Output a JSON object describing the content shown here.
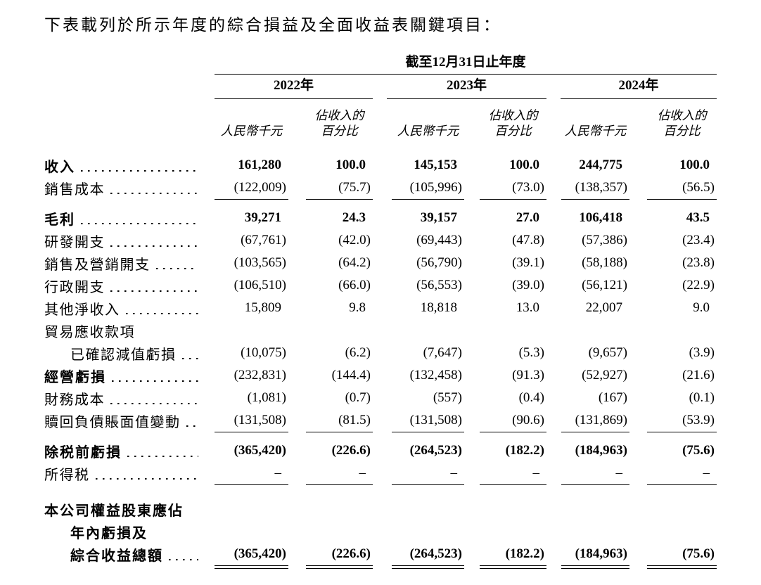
{
  "page": {
    "title": "下表載列於所示年度的綜合損益及全面收益表關鍵項目："
  },
  "table": {
    "period_header": "截至12月31日止年度",
    "years": [
      "2022年",
      "2023年",
      "2024年"
    ],
    "col_unit_header": "人民幣千元",
    "col_pct_header": [
      "佔收入的",
      "百分比"
    ],
    "rows": [
      {
        "label": "收入",
        "leader": true,
        "bold_label": true,
        "bold_values": true,
        "values": [
          "161,280",
          "100.0",
          "145,153",
          "100.0",
          "244,775",
          "100.0"
        ],
        "rule_below": "none"
      },
      {
        "label": "銷售成本",
        "leader": true,
        "values": [
          "(122,009)",
          "(75.7)",
          "(105,996)",
          "(73.0)",
          "(138,357)",
          "(56.5)"
        ],
        "rule_below": "single"
      },
      {
        "label": "毛利",
        "leader": true,
        "bold_label": true,
        "bold_values": true,
        "values": [
          "39,271",
          "24.3",
          "39,157",
          "27.0",
          "106,418",
          "43.5"
        ],
        "rule_below": "none"
      },
      {
        "label": "研發開支",
        "leader": true,
        "values": [
          "(67,761)",
          "(42.0)",
          "(69,443)",
          "(47.8)",
          "(57,386)",
          "(23.4)"
        ],
        "rule_below": "none"
      },
      {
        "label": "銷售及營銷開支",
        "leader": true,
        "values": [
          "(103,565)",
          "(64.2)",
          "(56,790)",
          "(39.1)",
          "(58,188)",
          "(23.8)"
        ],
        "rule_below": "none"
      },
      {
        "label": "行政開支",
        "leader": true,
        "values": [
          "(106,510)",
          "(66.0)",
          "(56,553)",
          "(39.0)",
          "(56,121)",
          "(22.9)"
        ],
        "rule_below": "none"
      },
      {
        "label": "其他淨收入",
        "leader": true,
        "values": [
          "15,809",
          "9.8",
          "18,818",
          "13.0",
          "22,007",
          "9.0"
        ],
        "rule_below": "none"
      },
      {
        "label": "貿易應收款項",
        "leader": false,
        "values": null,
        "rule_below": "none"
      },
      {
        "label": "已確認減值虧損",
        "indent": true,
        "leader": true,
        "values": [
          "(10,075)",
          "(6.2)",
          "(7,647)",
          "(5.3)",
          "(9,657)",
          "(3.9)"
        ],
        "rule_below": "none"
      },
      {
        "label": "經營虧損",
        "leader": true,
        "bold_label": true,
        "values": [
          "(232,831)",
          "(144.4)",
          "(132,458)",
          "(91.3)",
          "(52,927)",
          "(21.6)"
        ],
        "rule_below": "none"
      },
      {
        "label": "財務成本",
        "leader": true,
        "values": [
          "(1,081)",
          "(0.7)",
          "(557)",
          "(0.4)",
          "(167)",
          "(0.1)"
        ],
        "rule_below": "none"
      },
      {
        "label": "贖回負債賬面值變動",
        "leader": true,
        "values": [
          "(131,508)",
          "(81.5)",
          "(131,508)",
          "(90.6)",
          "(131,869)",
          "(53.9)"
        ],
        "rule_below": "single"
      },
      {
        "label": "除税前虧損",
        "leader": true,
        "bold_label": true,
        "bold_values": true,
        "values": [
          "(365,420)",
          "(226.6)",
          "(264,523)",
          "(182.2)",
          "(184,963)",
          "(75.6)"
        ],
        "rule_below": "none"
      },
      {
        "label": "所得税",
        "leader": true,
        "values": [
          "–",
          "–",
          "–",
          "–",
          "–",
          "–"
        ],
        "rule_below": "single"
      },
      {
        "label": "本公司權益股東應佔",
        "bold_label": true,
        "values": null,
        "extra_space_before": true,
        "rule_below": "none"
      },
      {
        "label": "年內虧損及",
        "indent": true,
        "bold_label": true,
        "values": null,
        "rule_below": "none"
      },
      {
        "label": "綜合收益總額",
        "indent": true,
        "leader": true,
        "bold_label": true,
        "bold_values": true,
        "values": [
          "(365,420)",
          "(226.6)",
          "(264,523)",
          "(182.2)",
          "(184,963)",
          "(75.6)"
        ],
        "rule_below": "double"
      }
    ]
  }
}
